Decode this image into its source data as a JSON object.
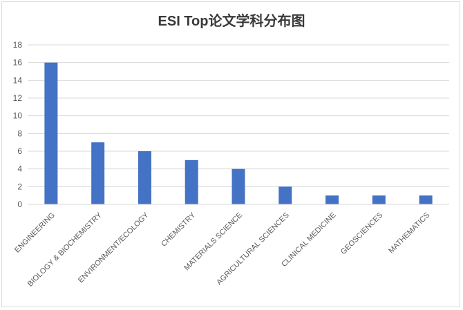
{
  "chart_data": {
    "type": "bar",
    "title": "ESI Top论文学科分布图",
    "xlabel": "",
    "ylabel": "",
    "categories": [
      "ENGINEERING",
      "BIOLOGY & BIOCHEMISTRY",
      "ENVIRONMENT/ECOLOGY",
      "CHEMISTRY",
      "MATERIALS SCIENCE",
      "AGRICULTURAL SCIENCES",
      "CLINICAL MEDICINE",
      "GEOSCIENCES",
      "MATHEMATICS"
    ],
    "values": [
      16,
      7,
      6,
      5,
      4,
      2,
      1,
      1,
      1
    ],
    "ylim": [
      0,
      18
    ],
    "yticks": [
      "0",
      "2",
      "4",
      "6",
      "8",
      "10",
      "12",
      "14",
      "16",
      "18"
    ],
    "grid": true,
    "legend": "none",
    "bar_color": "#4472c4",
    "grid_color": "#d9d9d9"
  }
}
